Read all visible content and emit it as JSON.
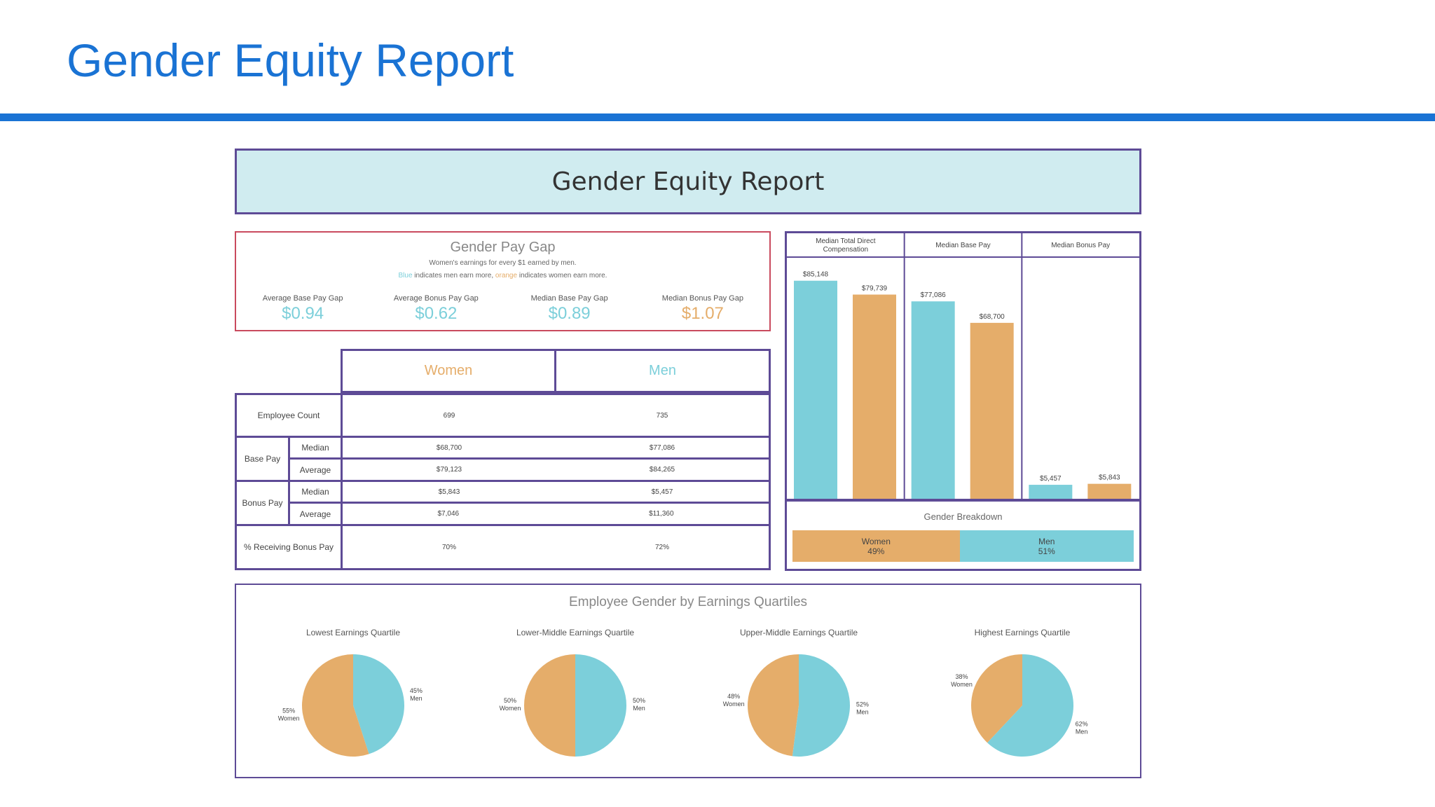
{
  "slide": {
    "title": "Gender Equity Report"
  },
  "dashboard": {
    "banner_title": "Gender Equity Report",
    "pay_gap": {
      "title": "Gender Pay Gap",
      "subtitle": "Women's earnings for every $1 earned by men.",
      "legend_blue": "Blue",
      "legend_mid": " indicates men earn more, ",
      "legend_orange": "orange",
      "legend_end": " indicates women earn more.",
      "metrics": [
        {
          "label": "Average Base Pay Gap",
          "value": "$0.94",
          "color": "#7ccfda"
        },
        {
          "label": "Average Bonus Pay Gap",
          "value": "$0.62",
          "color": "#7ccfda"
        },
        {
          "label": "Median Base Pay Gap",
          "value": "$0.89",
          "color": "#7ccfda"
        },
        {
          "label": "Median Bonus Pay Gap",
          "value": "$1.07",
          "color": "#e5ad6a"
        }
      ]
    },
    "table": {
      "col_women": "Women",
      "col_men": "Men",
      "rows": {
        "employee_count": {
          "label": "Employee Count",
          "women": "699",
          "men": "735"
        },
        "base_pay": {
          "label": "Base Pay",
          "median": {
            "label": "Median",
            "women": "$68,700",
            "men": "$77,086"
          },
          "average": {
            "label": "Average",
            "women": "$79,123",
            "men": "$84,265"
          }
        },
        "bonus_pay": {
          "label": "Bonus Pay",
          "median": {
            "label": "Median",
            "women": "$5,843",
            "men": "$5,457"
          },
          "average": {
            "label": "Average",
            "women": "$7,046",
            "men": "$11,360"
          }
        },
        "receiving_bonus": {
          "label": "% Receiving Bonus Pay",
          "women": "70%",
          "men": "72%"
        }
      }
    },
    "breakdown": {
      "title": "Gender Breakdown",
      "women_label": "Women",
      "women_value": "49%",
      "women_share": 49,
      "men_label": "Men",
      "men_value": "51%",
      "men_share": 51
    },
    "pies_title": "Employee Gender by Earnings Quartiles",
    "colors": {
      "women": "#e5ad6a",
      "men": "#7ccfda",
      "border": "#5e4b96",
      "title_blue": "#1a73d4"
    }
  },
  "chart_data": [
    {
      "type": "bar",
      "panels": [
        "Median Total Direct Compensation",
        "Median Base Pay",
        "Median Bonus Pay"
      ],
      "series": [
        {
          "name": "Men",
          "values": [
            85148,
            77086,
            5457
          ],
          "labels": [
            "$85,148",
            "$77,086",
            "$5,457"
          ]
        },
        {
          "name": "Women",
          "values": [
            79739,
            68700,
            5843
          ],
          "labels": [
            "$79,739",
            "$68,700",
            "$5,843"
          ]
        }
      ]
    },
    {
      "type": "pie",
      "title": "Employee Gender by Earnings Quartiles",
      "pies": [
        {
          "title": "Lowest Earnings Quartile",
          "men": 45,
          "women": 55
        },
        {
          "title": "Lower-Middle Earnings Quartile",
          "men": 50,
          "women": 50
        },
        {
          "title": "Upper-Middle Earnings Quartile",
          "men": 52,
          "women": 48
        },
        {
          "title": "Highest Earnings Quartile",
          "men": 62,
          "women": 38
        }
      ],
      "label_men": "Men",
      "label_women": "Women"
    }
  ]
}
